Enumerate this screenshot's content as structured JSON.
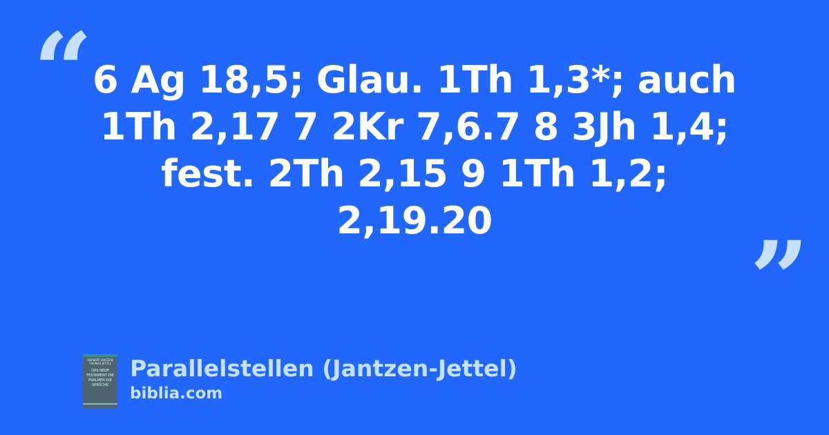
{
  "quote": {
    "text": "6 Ag 18,5; Glau. 1Th 1,3*; auch 1Th 2,17 7 2Kr 7,6.7 8 3Jh 1,4; fest. 2Th 2,15 9 1Th 1,2; 2,19.20",
    "open_mark": "“",
    "close_mark": "”"
  },
  "source": {
    "title": "Parallelstellen (Jantzen-Jettel)",
    "site": "biblia.com",
    "cover": {
      "authors": "HERBERT JANTZEN THOMAS JETTEL",
      "title": "DAS NEUE TESTAMENT DIE PSALMEN DIE SPRÜCHE"
    }
  },
  "colors": {
    "background": "#2167fe",
    "accent": "#c5e1ff",
    "text": "#ffffff"
  }
}
